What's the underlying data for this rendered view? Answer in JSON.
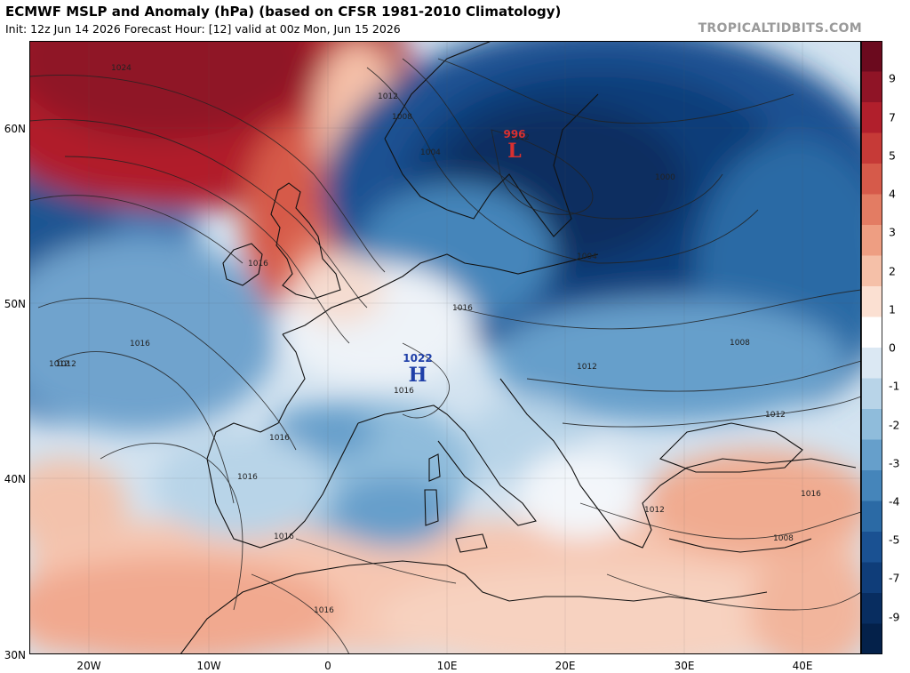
{
  "header": {
    "title": "ECMWF MSLP and Anomaly (hPa) (based on CFSR 1981-2010 Climatology)",
    "subtitle": "Init: 12z Jun 14 2026   Forecast Hour: [12]   valid at 00z Mon, Jun 15 2026",
    "brand": "TROPICALTIDBITS.COM"
  },
  "map": {
    "region": "Europe and North Africa",
    "latitude_labels": [
      "60N",
      "50N",
      "40N",
      "30N"
    ],
    "longitude_labels": [
      "20W",
      "10W",
      "0",
      "10E",
      "20E",
      "30E",
      "40E"
    ],
    "pressure_centers": [
      {
        "id": "low",
        "value": "996",
        "symbol": "L",
        "color": "#d83030"
      },
      {
        "id": "high",
        "value": "1022",
        "symbol": "H",
        "color": "#1f3fa8"
      }
    ],
    "isobar_labels": [
      "1024",
      "1012",
      "1008",
      "1004",
      "1000",
      "1016",
      "1016",
      "1012",
      "1016",
      "1016",
      "1016",
      "1012",
      "1004",
      "1008",
      "1012",
      "1016",
      "1016",
      "1016",
      "1016",
      "1012",
      "1012",
      "1012",
      "1008"
    ]
  },
  "colorbar": {
    "labels": [
      "9",
      "7",
      "5",
      "4",
      "3",
      "2",
      "1",
      "0",
      "-1",
      "-2",
      "-3",
      "-4",
      "-5",
      "-7",
      "-9"
    ],
    "colors": [
      "#6b0a1e",
      "#8f1426",
      "#b11f2c",
      "#c63a37",
      "#d65a4a",
      "#e37c63",
      "#ee9e82",
      "#f5c0a8",
      "#fbe0d2",
      "#ffffff",
      "#dbe8f3",
      "#b8d4e8",
      "#8fbcdb",
      "#669fcb",
      "#4585ba",
      "#2b6aa5",
      "#1a5192",
      "#0f3d79",
      "#082d60",
      "#04214a"
    ]
  }
}
